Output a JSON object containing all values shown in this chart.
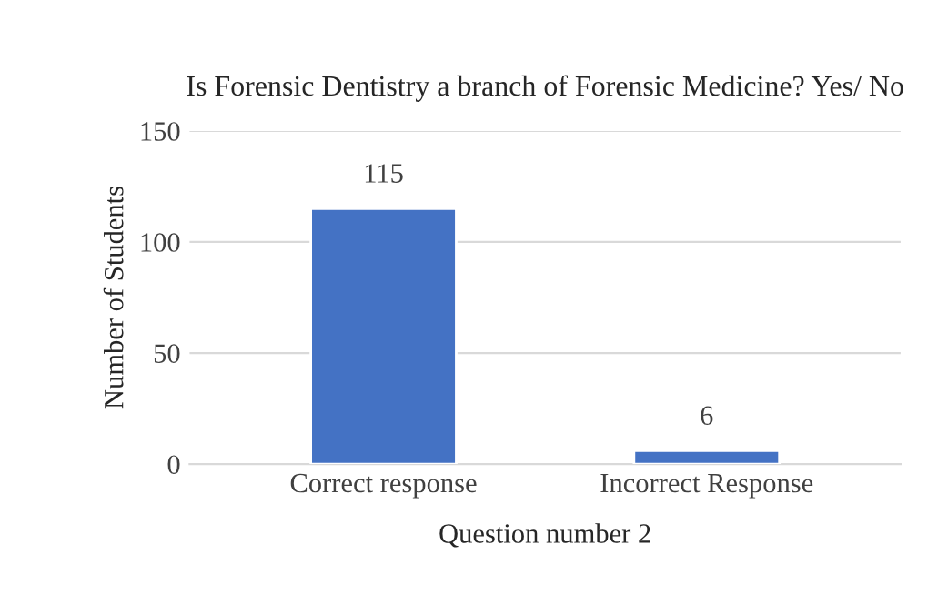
{
  "chart_data": {
    "type": "bar",
    "title": "Is Forensic Dentistry a branch of Forensic Medicine? Yes/ No",
    "xlabel": "Question number 2",
    "ylabel": "Number of Students",
    "categories": [
      "Correct response",
      "Incorrect Response"
    ],
    "values": [
      115,
      6
    ],
    "color": "#4472c4",
    "ylim": [
      0,
      150
    ],
    "yticks": [
      0,
      50,
      100,
      150
    ],
    "grid": "y",
    "data_labels": true
  }
}
